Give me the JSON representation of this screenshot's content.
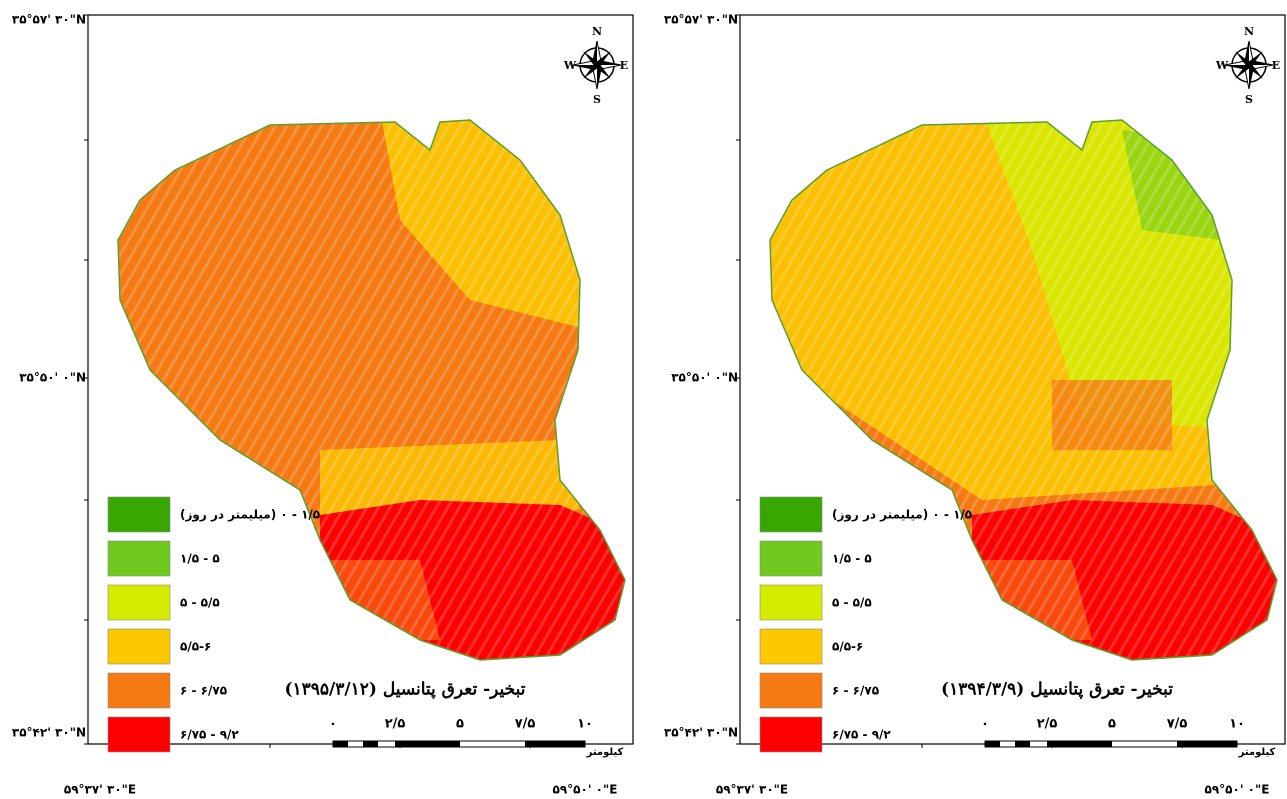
{
  "panels": [
    {
      "lat": [
        "۳۵°۵۷' ۳۰\"N",
        "۳۵°۵۰' ۰\"N",
        "۳۵°۴۲' ۳۰\"N"
      ],
      "lon": [
        "۵۹°۳۷' ۳۰\"E",
        "۵۹°۵۰' ۰\"E"
      ],
      "compass": {
        "n": "N",
        "e": "E",
        "s": "S",
        "w": "W"
      },
      "legend": [
        {
          "label": "(میلیمتر در روز) ۱/۵ - ۰",
          "color": "#38a800"
        },
        {
          "label": "۱/۵ - ۵",
          "color": "#70c91e"
        },
        {
          "label": "۵ - ۵/۵",
          "color": "#d4ec00"
        },
        {
          "label": "۵/۵-۶",
          "color": "#fcc800"
        },
        {
          "label": "۶ - ۶/۷۵",
          "color": "#f57a14"
        },
        {
          "label": "۶/۷۵ - ۹/۲",
          "color": "#ff0000"
        }
      ],
      "title": "تبخیر- تعرق پتانسیل (۱۳۹۵/۳/۱۲)",
      "scale": {
        "ticks": [
          "۰",
          "۲/۵",
          "۵",
          "۷/۵",
          "۱۰"
        ],
        "unit": "کیلومتر"
      }
    },
    {
      "lat": [
        "۳۵°۵۷' ۳۰\"N",
        "۳۵°۵۰' ۰\"N",
        "۳۵°۴۲' ۳۰\"N"
      ],
      "lon": [
        "۵۹°۳۷' ۳۰\"E",
        "۵۹°۵۰' ۰\"E"
      ],
      "compass": {
        "n": "N",
        "e": "E",
        "s": "S",
        "w": "W"
      },
      "legend": [
        {
          "label": "(میلیمتر در روز) ۱/۵ - ۰",
          "color": "#38a800"
        },
        {
          "label": "۱/۵ - ۵",
          "color": "#70c91e"
        },
        {
          "label": "۵ - ۵/۵",
          "color": "#d4ec00"
        },
        {
          "label": "۵/۵-۶",
          "color": "#fcc800"
        },
        {
          "label": "۶ - ۶/۷۵",
          "color": "#f57a14"
        },
        {
          "label": "۶/۷۵ - ۹/۲",
          "color": "#ff0000"
        }
      ],
      "title": "تبخیر- تعرق پتانسیل (۱۳۹۴/۳/۹)",
      "scale": {
        "ticks": [
          "۰",
          "۲/۵",
          "۵",
          "۷/۵",
          "۱۰"
        ],
        "unit": "کیلومتر"
      }
    }
  ]
}
